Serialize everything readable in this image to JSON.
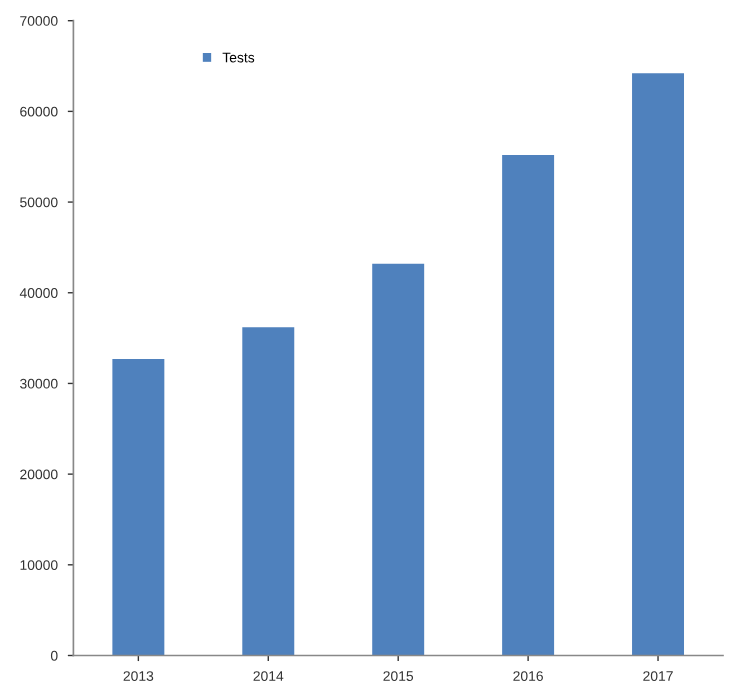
{
  "chart_data": {
    "type": "bar",
    "categories": [
      "2013",
      "2014",
      "2015",
      "2016",
      "2017"
    ],
    "series": [
      {
        "name": "Tests",
        "color": "#4f81bd",
        "values": [
          32700,
          36200,
          43200,
          55200,
          64200
        ]
      }
    ],
    "ylim": [
      0,
      70000
    ],
    "yticks": [
      0,
      10000,
      20000,
      30000,
      40000,
      50000,
      60000,
      70000
    ],
    "grid": false,
    "legend": "top left"
  }
}
